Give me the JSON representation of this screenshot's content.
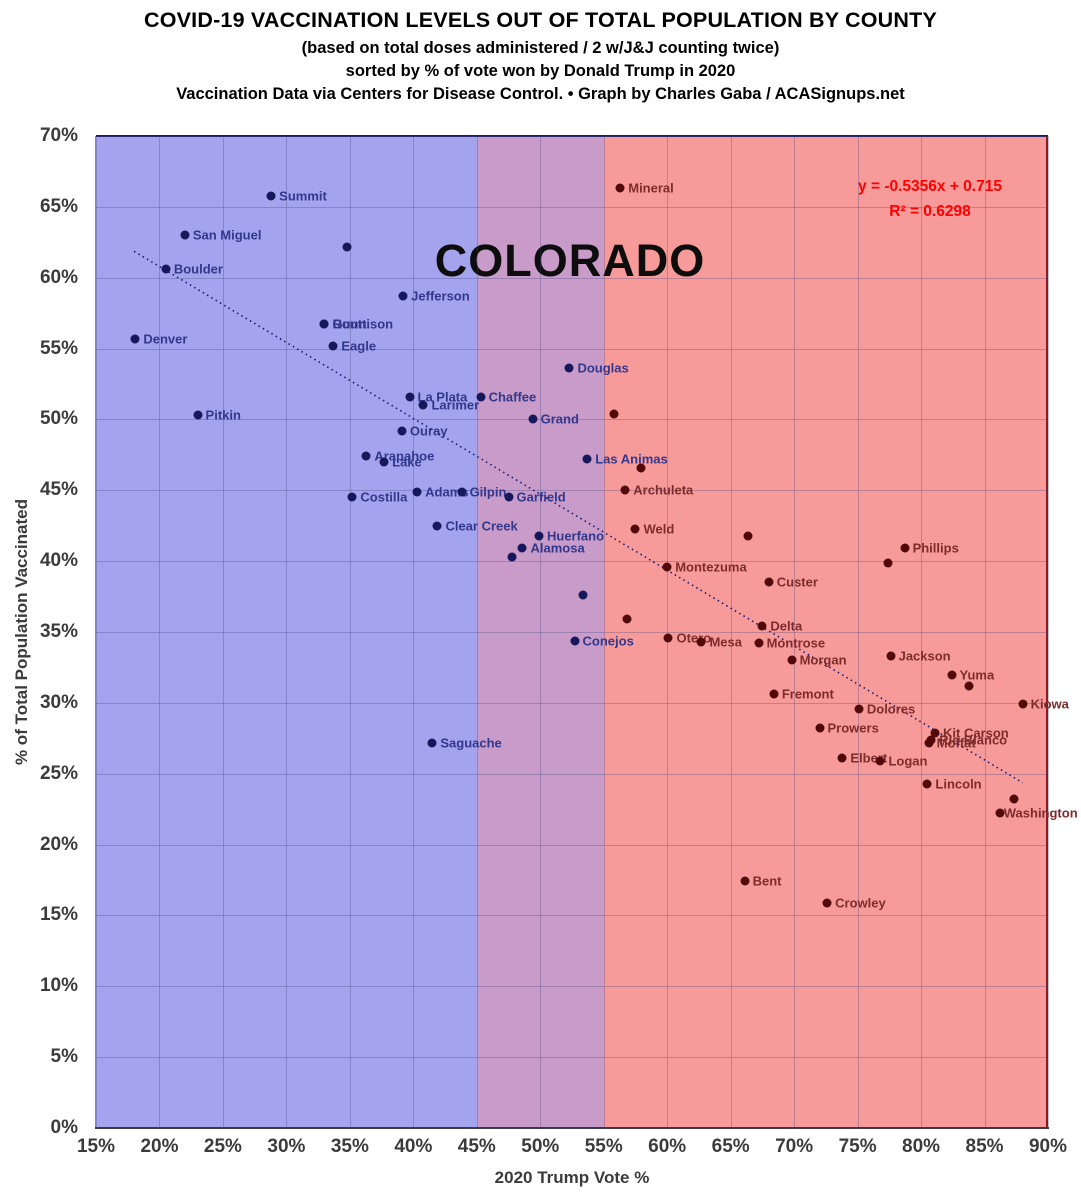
{
  "header": {
    "title": "COVID-19 VACCINATION LEVELS OUT OF TOTAL POPULATION BY COUNTY",
    "subtitle1": "(based on total doses administered / 2 w/J&J counting twice)",
    "subtitle2": "sorted by % of vote won by Donald Trump in 2020",
    "subtitle3": "Vaccination Data via Centers for Disease Control. • Graph by Charles Gaba / ACASignups.net"
  },
  "colors": {
    "zone_blue": "#a3a3ee",
    "zone_purple": "#c89bc9",
    "zone_red": "#f79a9a",
    "dot_blue": "#17175c",
    "dot_red": "#520909",
    "label_blue": "#32388c",
    "label_red": "#7d2c2c",
    "equation_red": "#ff0000",
    "axis_text": "#3b3b3b",
    "trend_line": "#1b1b6e"
  },
  "chart_data": {
    "type": "scatter",
    "inside_label": "COLORADO",
    "xlabel": "2020 Trump Vote %",
    "ylabel": "% of Total Population Vaccinated",
    "xlim": [
      15,
      90
    ],
    "ylim": [
      0,
      70
    ],
    "grid": true,
    "x_ticks": [
      15,
      20,
      25,
      30,
      35,
      40,
      45,
      50,
      55,
      60,
      65,
      70,
      75,
      80,
      85,
      90
    ],
    "x_tick_labels": [
      "15%",
      "20%",
      "25%",
      "30%",
      "35%",
      "40%",
      "45%",
      "50%",
      "55%",
      "60%",
      "65%",
      "70%",
      "75%",
      "80%",
      "85%",
      "90%"
    ],
    "y_ticks": [
      0,
      5,
      10,
      15,
      20,
      25,
      30,
      35,
      40,
      45,
      50,
      55,
      60,
      65,
      70
    ],
    "y_tick_labels": [
      "0%",
      "5%",
      "10%",
      "15%",
      "20%",
      "25%",
      "30%",
      "35%",
      "40%",
      "45%",
      "50%",
      "55%",
      "60%",
      "65%",
      "70%"
    ],
    "zones": [
      {
        "name": "blue-lean",
        "from": 15,
        "to": 45,
        "color_key": "zone_blue"
      },
      {
        "name": "swing-overlap",
        "from": 45,
        "to": 55,
        "color_key": "zone_purple"
      },
      {
        "name": "red-lean",
        "from": 55,
        "to": 90,
        "color_key": "zone_red"
      }
    ],
    "red_zone_start": 55,
    "trendline": {
      "equation": "y = -0.5356x + 0.715",
      "r2": "R² = 0.6298",
      "slope": -0.5356,
      "intercept": 0.715,
      "x_start": 18,
      "x_end": 88,
      "style": "dotted"
    },
    "points": [
      {
        "county": "Summit",
        "trump": 28.8,
        "vax": 65.8
      },
      {
        "county": "San Miguel",
        "trump": 22.0,
        "vax": 63.0
      },
      {
        "county": "Boulder",
        "trump": 20.5,
        "vax": 60.6
      },
      {
        "county": "",
        "trump": 34.8,
        "vax": 62.2
      },
      {
        "county": "Denver",
        "trump": 18.1,
        "vax": 55.7
      },
      {
        "county": "Jefferson",
        "trump": 39.2,
        "vax": 58.7
      },
      {
        "county": "Gunnison",
        "trump": 33.0,
        "vax": 56.7
      },
      {
        "county": "Routt",
        "trump": 33.0,
        "vax": 56.7
      },
      {
        "county": "Eagle",
        "trump": 33.7,
        "vax": 55.2
      },
      {
        "county": "Pitkin",
        "trump": 23.0,
        "vax": 50.3
      },
      {
        "county": "La Plata",
        "trump": 39.7,
        "vax": 51.6
      },
      {
        "county": "Larimer",
        "trump": 40.8,
        "vax": 51.0
      },
      {
        "county": "Chaffee",
        "trump": 45.3,
        "vax": 51.6
      },
      {
        "county": "Douglas",
        "trump": 52.3,
        "vax": 53.6
      },
      {
        "county": "Grand",
        "trump": 49.4,
        "vax": 50.0
      },
      {
        "county": "",
        "trump": 55.8,
        "vax": 50.4
      },
      {
        "county": "Ouray",
        "trump": 39.1,
        "vax": 49.2
      },
      {
        "county": "Arapahoe",
        "trump": 36.3,
        "vax": 47.4
      },
      {
        "county": "Lake",
        "trump": 37.7,
        "vax": 47.0
      },
      {
        "county": "Las Animas",
        "trump": 53.7,
        "vax": 47.2
      },
      {
        "county": "",
        "trump": 57.9,
        "vax": 46.6
      },
      {
        "county": "Costilla",
        "trump": 35.2,
        "vax": 44.5
      },
      {
        "county": "Adams",
        "trump": 40.3,
        "vax": 44.9
      },
      {
        "county": "Gilpin",
        "trump": 43.8,
        "vax": 44.9
      },
      {
        "county": "Garfield",
        "trump": 47.5,
        "vax": 44.5
      },
      {
        "county": "Archuleta",
        "trump": 56.7,
        "vax": 45.0
      },
      {
        "county": "Clear Creek",
        "trump": 41.9,
        "vax": 42.5
      },
      {
        "county": "Weld",
        "trump": 57.5,
        "vax": 42.3
      },
      {
        "county": "Huerfano",
        "trump": 49.9,
        "vax": 41.8
      },
      {
        "county": "Alamosa",
        "trump": 48.6,
        "vax": 40.9
      },
      {
        "county": "",
        "trump": 47.8,
        "vax": 40.3
      },
      {
        "county": "",
        "trump": 66.4,
        "vax": 41.8
      },
      {
        "county": "Phillips",
        "trump": 78.7,
        "vax": 40.9
      },
      {
        "county": "",
        "trump": 77.4,
        "vax": 39.9
      },
      {
        "county": "Montezuma",
        "trump": 60.0,
        "vax": 39.6
      },
      {
        "county": "Custer",
        "trump": 68.0,
        "vax": 38.5
      },
      {
        "county": "",
        "trump": 53.4,
        "vax": 37.6
      },
      {
        "county": "",
        "trump": 56.8,
        "vax": 35.9
      },
      {
        "county": "Conejos",
        "trump": 52.7,
        "vax": 34.4
      },
      {
        "county": "Otero",
        "trump": 60.1,
        "vax": 34.6
      },
      {
        "county": "Mesa",
        "trump": 62.7,
        "vax": 34.3
      },
      {
        "county": "Delta",
        "trump": 67.5,
        "vax": 35.4
      },
      {
        "county": "Montrose",
        "trump": 67.2,
        "vax": 34.2
      },
      {
        "county": "Morgan",
        "trump": 69.8,
        "vax": 33.0
      },
      {
        "county": "Jackson",
        "trump": 77.6,
        "vax": 33.3
      },
      {
        "county": "Yuma",
        "trump": 82.4,
        "vax": 32.0
      },
      {
        "county": "",
        "trump": 83.8,
        "vax": 31.2
      },
      {
        "county": "Fremont",
        "trump": 68.4,
        "vax": 30.6
      },
      {
        "county": "Dolores",
        "trump": 75.1,
        "vax": 29.6
      },
      {
        "county": "Kiowa",
        "trump": 88.0,
        "vax": 29.9
      },
      {
        "county": "Prowers",
        "trump": 72.0,
        "vax": 28.2
      },
      {
        "county": "Kit Carson",
        "trump": 81.1,
        "vax": 27.9
      },
      {
        "county": "Moffat",
        "trump": 80.6,
        "vax": 27.2
      },
      {
        "county": "Rio Blanco",
        "trump": 80.8,
        "vax": 27.4
      },
      {
        "county": "Elbert",
        "trump": 73.8,
        "vax": 26.1
      },
      {
        "county": "Logan",
        "trump": 76.8,
        "vax": 25.9
      },
      {
        "county": "Lincoln",
        "trump": 80.5,
        "vax": 24.3
      },
      {
        "county": "",
        "trump": 87.3,
        "vax": 23.2
      },
      {
        "county": "Washington",
        "trump": 86.2,
        "vax": 22.2,
        "label_dx": -4
      },
      {
        "county": "Saguache",
        "trump": 41.5,
        "vax": 27.2
      },
      {
        "county": "Bent",
        "trump": 66.1,
        "vax": 17.4
      },
      {
        "county": "Crowley",
        "trump": 72.6,
        "vax": 15.9
      },
      {
        "county": "Mineral",
        "trump": 56.3,
        "vax": 66.3
      }
    ]
  }
}
